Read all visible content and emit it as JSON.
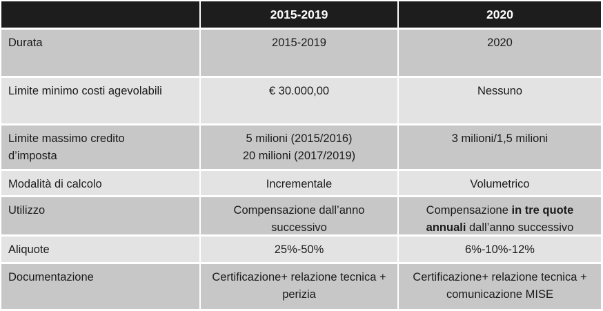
{
  "colors": {
    "header_bg": "#1d1d1d",
    "header_text": "#ffffff",
    "row_dark": "#c7c7c7",
    "row_light": "#e3e3e3",
    "body_text": "#1a1a1a",
    "gutter": "#ffffff"
  },
  "table": {
    "header": {
      "col_label": "",
      "col_2015_2019": "2015-2019",
      "col_2020": "2020"
    },
    "rows": [
      {
        "label": "Durata",
        "v2015": "2015-2019",
        "v2020": "2020"
      },
      {
        "label": "Limite minimo costi agevolabili",
        "v2015": "€ 30.000,00",
        "v2020": "Nessuno"
      },
      {
        "label": "Limite massimo credito d’imposta",
        "v2015_line1": "5 milioni (2015/2016)",
        "v2015_line2": "20 milioni (2017/2019)",
        "v2020": "3 milioni/1,5 milioni"
      },
      {
        "label": "Modalità di calcolo",
        "v2015": "Incrementale",
        "v2020": "Volumetrico"
      },
      {
        "label": "Utilizzo",
        "v2015": "Compensazione dall’anno successivo",
        "v2020_prefix": "Compensazione ",
        "v2020_bold": "in tre quote annuali",
        "v2020_suffix": " dall’anno successivo"
      },
      {
        "label": "Aliquote",
        "v2015": "25%-50%",
        "v2020": "6%-10%-12%"
      },
      {
        "label": "Documentazione",
        "v2015": "Certificazione+ relazione tecnica + perizia",
        "v2020": "Certificazione+ relazione tecnica + comunicazione MISE"
      }
    ]
  }
}
